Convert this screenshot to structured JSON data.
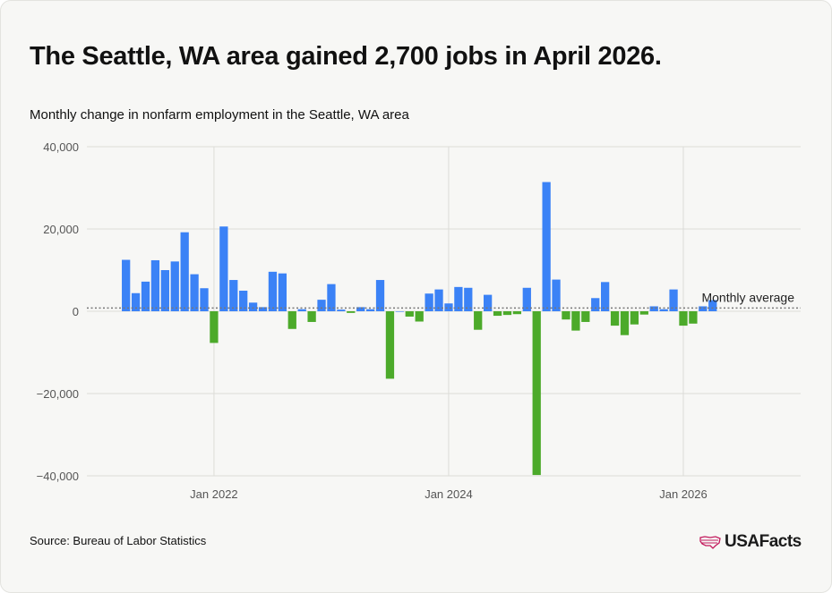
{
  "header": {
    "title": "The Seattle, WA area gained 2,700 jobs in April 2026.",
    "subtitle": "Monthly change in nonfarm employment in the Seattle, WA area"
  },
  "footer": {
    "source": "Source: Bureau of Labor Statistics",
    "logo_text": "USAFacts"
  },
  "colors": {
    "positive": "#3b82f6",
    "negative": "#4caa2a",
    "average_line": "#777777",
    "grid": "#dcdcd8"
  },
  "chart_data": {
    "type": "bar",
    "title": "The Seattle, WA area gained 2,700 jobs in April 2026.",
    "subtitle": "Monthly change in nonfarm employment in the Seattle, WA area",
    "xlabel": "",
    "ylabel": "",
    "ylim": [
      -40000,
      40000
    ],
    "yticks": [
      40000,
      20000,
      0,
      -20000,
      -40000
    ],
    "ytick_labels": [
      "40,000",
      "20,000",
      "0",
      "−20,000",
      "−40,000"
    ],
    "xticks": [
      "2022-01",
      "2024-01",
      "2026-01"
    ],
    "xtick_labels": [
      "Jan 2022",
      "Jan 2024",
      "Jan 2026"
    ],
    "x_range": [
      "2020-12",
      "2027-01"
    ],
    "grid": true,
    "average_label": "Monthly average",
    "average_value": 800,
    "categories": [
      "2021-04",
      "2021-05",
      "2021-06",
      "2021-07",
      "2021-08",
      "2021-09",
      "2021-10",
      "2021-11",
      "2021-12",
      "2022-01",
      "2022-02",
      "2022-03",
      "2022-04",
      "2022-05",
      "2022-06",
      "2022-07",
      "2022-08",
      "2022-09",
      "2022-10",
      "2022-11",
      "2022-12",
      "2023-01",
      "2023-02",
      "2023-03",
      "2023-04",
      "2023-05",
      "2023-06",
      "2023-07",
      "2023-08",
      "2023-09",
      "2023-10",
      "2023-11",
      "2023-12",
      "2024-01",
      "2024-02",
      "2024-03",
      "2024-04",
      "2024-05",
      "2024-06",
      "2024-07",
      "2024-08",
      "2024-09",
      "2024-10",
      "2024-11",
      "2024-12",
      "2025-01",
      "2025-02",
      "2025-03",
      "2025-04",
      "2025-05",
      "2025-06",
      "2025-07",
      "2025-08",
      "2025-09",
      "2025-10",
      "2025-11",
      "2025-12",
      "2026-01",
      "2026-02",
      "2026-03",
      "2026-04"
    ],
    "values": [
      12500,
      4400,
      7200,
      12400,
      10000,
      12100,
      19200,
      9000,
      5600,
      -7700,
      20600,
      7600,
      5000,
      2100,
      1000,
      9600,
      9200,
      -4300,
      500,
      -2600,
      2800,
      6600,
      400,
      -400,
      1000,
      500,
      7600,
      -16400,
      0,
      -1300,
      -2500,
      4300,
      5300,
      1900,
      5900,
      5700,
      -4500,
      4000,
      -1100,
      -900,
      -700,
      5700,
      -39800,
      31400,
      7700,
      -2000,
      -4700,
      -2600,
      3200,
      7100,
      -3500,
      -5800,
      -3200,
      -800,
      1200,
      500,
      5300,
      -3500,
      -3000,
      1200,
      2700
    ]
  }
}
